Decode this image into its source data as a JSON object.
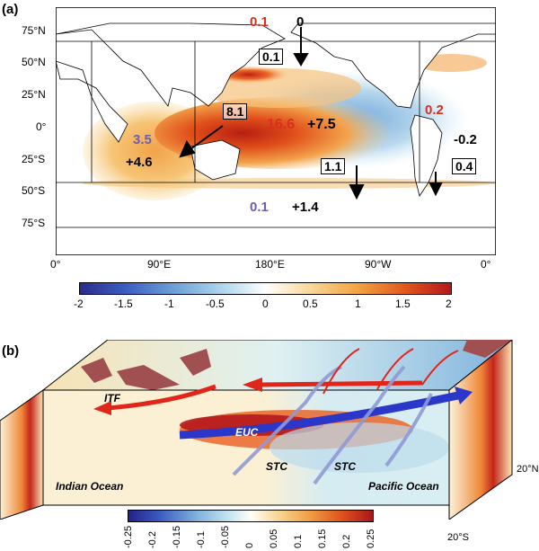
{
  "panel_a": {
    "label": "(a)",
    "lat_labels": [
      "75°N",
      "50°N",
      "25°N",
      "0°",
      "25°S",
      "50°S",
      "75°S"
    ],
    "lon_labels": [
      "0°",
      "90°E",
      "180°E",
      "90°W",
      "0°"
    ],
    "colorbar_ticks": [
      "-2",
      "-1.5",
      "-1",
      "-0.5",
      "0",
      "0.5",
      "1",
      "1.5",
      "2"
    ],
    "annotations": {
      "top_red": "0.1",
      "top_black": "0",
      "box_north": "0.1",
      "box_indo": "8.1",
      "pacific_red": "16.6",
      "pacific_black": "+7.5",
      "atlantic_red": "0.2",
      "atlantic_black": "-0.2",
      "indian_blue": "3.5",
      "indian_black": "+4.6",
      "box_south_pac": "1.1",
      "box_south_atl": "0.4",
      "south_blue": "0.1",
      "south_black": "+1.4"
    }
  },
  "panel_b": {
    "label": "(b)",
    "itf": "ITF",
    "euc": "EUC",
    "stc_left": "STC",
    "stc_right": "STC",
    "indian_ocean": "Indian Ocean",
    "pacific_ocean": "Pacific Ocean",
    "lat_n": "20°N",
    "lat_s": "20°S",
    "colorbar_ticks": [
      "-0.25",
      "-0.2",
      "-0.15",
      "-0.1",
      "-0.05",
      "0",
      "0.05",
      "0.1",
      "0.15",
      "0.2",
      "0.25"
    ]
  }
}
